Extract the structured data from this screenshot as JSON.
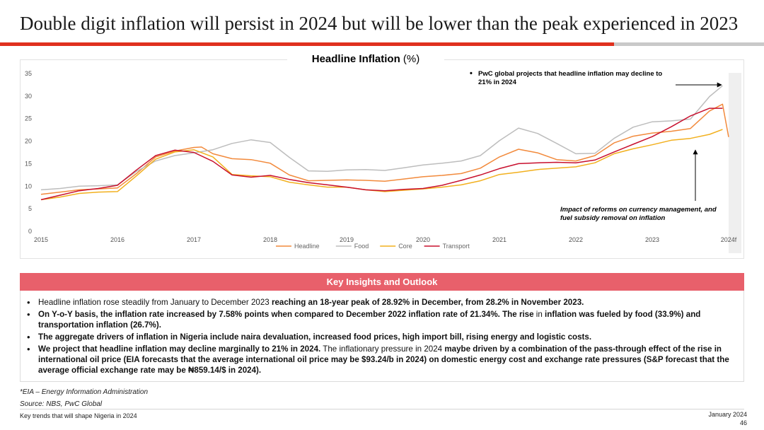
{
  "page": {
    "title": "Double digit inflation will persist in 2024 but will be lower than the peak experienced in 2023",
    "accent_color": "#e0301e"
  },
  "chart_data": {
    "type": "line",
    "title": "Headline Inflation",
    "title_unit": "(%)",
    "xlabel": "",
    "ylabel": "",
    "x_ticks": [
      "2015",
      "2016",
      "2017",
      "2018",
      "2019",
      "2020",
      "2021",
      "2022",
      "2023",
      "2024f"
    ],
    "y_ticks": [
      "0",
      "5",
      "10",
      "15",
      "20",
      "25",
      "30",
      "35"
    ],
    "ylim": [
      0,
      35
    ],
    "xlim": [
      2015,
      2024
    ],
    "legend_position": "bottom",
    "series": [
      {
        "name": "Headline",
        "color": "#f28a3c",
        "points": [
          [
            2015.0,
            8.2
          ],
          [
            2015.25,
            8.7
          ],
          [
            2015.5,
            9.2
          ],
          [
            2015.75,
            9.4
          ],
          [
            2016.0,
            9.6
          ],
          [
            2016.25,
            12.8
          ],
          [
            2016.5,
            16.5
          ],
          [
            2016.75,
            17.8
          ],
          [
            2017.0,
            18.6
          ],
          [
            2017.1,
            18.7
          ],
          [
            2017.25,
            17.2
          ],
          [
            2017.5,
            16.1
          ],
          [
            2017.75,
            15.9
          ],
          [
            2018.0,
            15.1
          ],
          [
            2018.25,
            12.5
          ],
          [
            2018.5,
            11.2
          ],
          [
            2018.75,
            11.3
          ],
          [
            2019.0,
            11.4
          ],
          [
            2019.25,
            11.3
          ],
          [
            2019.5,
            11.1
          ],
          [
            2019.75,
            11.6
          ],
          [
            2020.0,
            12.1
          ],
          [
            2020.25,
            12.4
          ],
          [
            2020.5,
            12.8
          ],
          [
            2020.75,
            14.0
          ],
          [
            2021.0,
            16.5
          ],
          [
            2021.25,
            18.2
          ],
          [
            2021.5,
            17.4
          ],
          [
            2021.75,
            15.9
          ],
          [
            2022.0,
            15.6
          ],
          [
            2022.25,
            16.8
          ],
          [
            2022.5,
            19.6
          ],
          [
            2022.75,
            21.1
          ],
          [
            2023.0,
            21.8
          ],
          [
            2023.25,
            22.2
          ],
          [
            2023.5,
            22.8
          ],
          [
            2023.75,
            26.7
          ],
          [
            2023.92,
            28.2
          ],
          [
            2024.0,
            20.9
          ]
        ]
      },
      {
        "name": "Food",
        "color": "#bdbdbd",
        "points": [
          [
            2015.0,
            9.2
          ],
          [
            2015.25,
            9.5
          ],
          [
            2015.5,
            10.0
          ],
          [
            2015.75,
            10.1
          ],
          [
            2016.0,
            10.3
          ],
          [
            2016.25,
            13.3
          ],
          [
            2016.5,
            15.6
          ],
          [
            2016.75,
            16.8
          ],
          [
            2017.0,
            17.4
          ],
          [
            2017.25,
            18.1
          ],
          [
            2017.5,
            19.5
          ],
          [
            2017.75,
            20.3
          ],
          [
            2018.0,
            19.7
          ],
          [
            2018.25,
            16.4
          ],
          [
            2018.5,
            13.4
          ],
          [
            2018.75,
            13.3
          ],
          [
            2019.0,
            13.6
          ],
          [
            2019.25,
            13.7
          ],
          [
            2019.5,
            13.5
          ],
          [
            2019.75,
            14.1
          ],
          [
            2020.0,
            14.7
          ],
          [
            2020.25,
            15.1
          ],
          [
            2020.5,
            15.6
          ],
          [
            2020.75,
            16.8
          ],
          [
            2021.0,
            20.1
          ],
          [
            2021.25,
            22.9
          ],
          [
            2021.5,
            21.7
          ],
          [
            2021.75,
            19.5
          ],
          [
            2022.0,
            17.2
          ],
          [
            2022.25,
            17.3
          ],
          [
            2022.5,
            20.6
          ],
          [
            2022.75,
            23.1
          ],
          [
            2023.0,
            24.3
          ],
          [
            2023.25,
            24.5
          ],
          [
            2023.5,
            24.9
          ],
          [
            2023.75,
            29.9
          ],
          [
            2023.92,
            32.3
          ]
        ]
      },
      {
        "name": "Core",
        "color": "#f2b01e",
        "points": [
          [
            2015.0,
            7.0
          ],
          [
            2015.25,
            7.6
          ],
          [
            2015.5,
            8.4
          ],
          [
            2015.75,
            8.7
          ],
          [
            2016.0,
            8.8
          ],
          [
            2016.25,
            12.3
          ],
          [
            2016.5,
            16.0
          ],
          [
            2016.75,
            17.6
          ],
          [
            2017.0,
            18.1
          ],
          [
            2017.25,
            16.5
          ],
          [
            2017.5,
            12.6
          ],
          [
            2017.75,
            12.3
          ],
          [
            2018.0,
            12.1
          ],
          [
            2018.25,
            10.9
          ],
          [
            2018.5,
            10.3
          ],
          [
            2018.75,
            9.8
          ],
          [
            2019.0,
            9.8
          ],
          [
            2019.25,
            9.2
          ],
          [
            2019.5,
            8.8
          ],
          [
            2019.75,
            9.1
          ],
          [
            2020.0,
            9.4
          ],
          [
            2020.25,
            9.8
          ],
          [
            2020.5,
            10.3
          ],
          [
            2020.75,
            11.2
          ],
          [
            2021.0,
            12.6
          ],
          [
            2021.25,
            13.1
          ],
          [
            2021.5,
            13.7
          ],
          [
            2021.75,
            14.0
          ],
          [
            2022.0,
            14.3
          ],
          [
            2022.25,
            15.2
          ],
          [
            2022.5,
            17.2
          ],
          [
            2022.75,
            18.3
          ],
          [
            2023.0,
            19.2
          ],
          [
            2023.25,
            20.2
          ],
          [
            2023.5,
            20.6
          ],
          [
            2023.75,
            21.5
          ],
          [
            2023.92,
            22.6
          ]
        ]
      },
      {
        "name": "Transport",
        "color": "#c8102e",
        "points": [
          [
            2015.0,
            7.0
          ],
          [
            2015.25,
            8.0
          ],
          [
            2015.5,
            9.0
          ],
          [
            2015.75,
            9.5
          ],
          [
            2016.0,
            10.2
          ],
          [
            2016.25,
            13.6
          ],
          [
            2016.5,
            16.8
          ],
          [
            2016.75,
            18.0
          ],
          [
            2017.0,
            17.5
          ],
          [
            2017.25,
            15.5
          ],
          [
            2017.5,
            12.5
          ],
          [
            2017.75,
            12.0
          ],
          [
            2018.0,
            12.4
          ],
          [
            2018.25,
            11.5
          ],
          [
            2018.5,
            10.8
          ],
          [
            2018.75,
            10.3
          ],
          [
            2019.0,
            9.8
          ],
          [
            2019.25,
            9.2
          ],
          [
            2019.5,
            9.0
          ],
          [
            2019.75,
            9.3
          ],
          [
            2020.0,
            9.5
          ],
          [
            2020.25,
            10.2
          ],
          [
            2020.5,
            11.3
          ],
          [
            2020.75,
            12.5
          ],
          [
            2021.0,
            13.9
          ],
          [
            2021.25,
            15.0
          ],
          [
            2021.5,
            15.2
          ],
          [
            2021.75,
            15.3
          ],
          [
            2022.0,
            15.2
          ],
          [
            2022.25,
            15.8
          ],
          [
            2022.5,
            17.6
          ],
          [
            2022.75,
            19.3
          ],
          [
            2023.0,
            21.0
          ],
          [
            2023.25,
            23.2
          ],
          [
            2023.5,
            25.6
          ],
          [
            2023.75,
            27.3
          ],
          [
            2023.92,
            27.3
          ]
        ]
      }
    ],
    "annotations": {
      "top_callout": "PwC global projects that headline inflation may decline to 21% in 2024",
      "bottom_callout": "Impact of reforms on currency management, and fuel subsidy removal on inflation"
    }
  },
  "insights": {
    "header": "Key Insights and Outlook",
    "b1_normal": "Headline inflation rose steadily from January to December 2023 ",
    "b1_bold": "reaching an 18-year peak of 28.92% in December, from 28.2% in November 2023.",
    "b2_bold_a": "On Y-o-Y basis, the inflation rate increased by 7.58% points when compared to December 2022 inflation rate of 21.34%. The rise ",
    "b2_normal": "in",
    "b2_bold_b": " inflation was fueled by food (33.9%) and transportation inflation (26.7%).",
    "b3_bold": "The aggregate drivers of inflation in Nigeria include naira devaluation, increased food prices, high import bill, rising energy and logistic costs.",
    "b4_bold_a": "We project that headline inflation may decline marginally to 21% in 2024.",
    "b4_normal_a": " The inflationary pressure in 2024 ",
    "b4_bold_b": "maybe driven by a combination of the pass-through effect of the rise in international oil price (EIA forecasts that the average international oil price may be $93.24/b in 2024) on domestic energy cost and exchange rate pressures (S&P forecast that the average official exchange rate may be ₦859.14/$ in 2024)."
  },
  "footer": {
    "footnote": "*EIA – Energy Information Administration",
    "source": "Source: NBS, PwC Global",
    "left_text": "Key trends that will shape Nigeria in 2024",
    "date": "January 2024",
    "page_number": "46"
  }
}
